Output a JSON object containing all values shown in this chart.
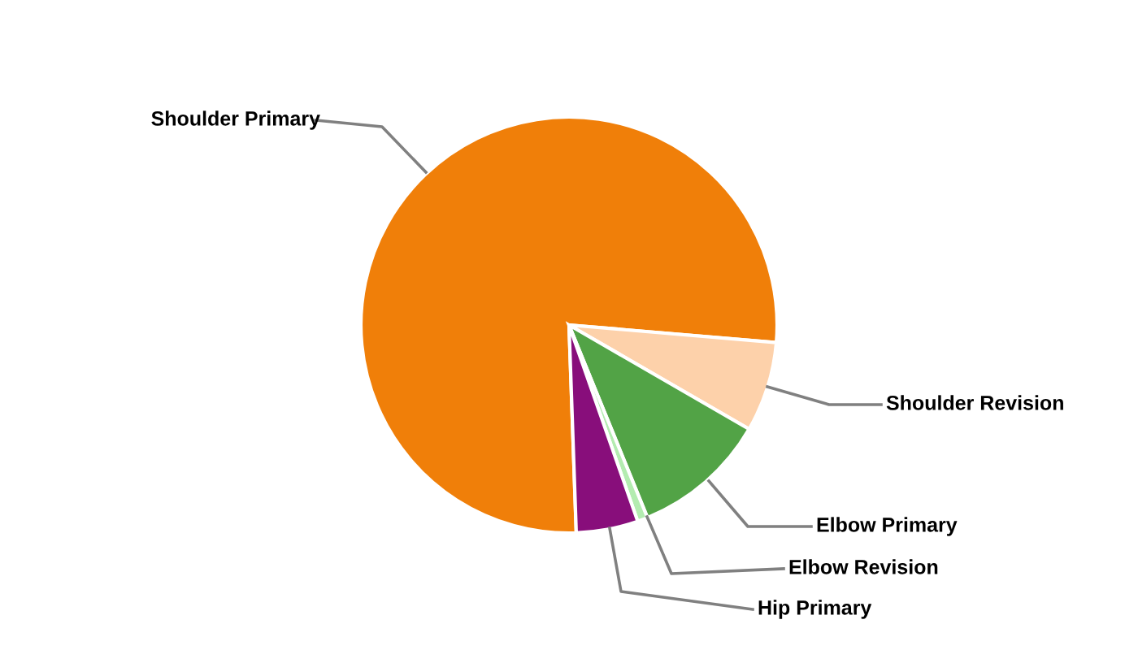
{
  "chart_data": {
    "type": "pie",
    "categories": [
      "Shoulder Primary",
      "Shoulder Revision",
      "Elbow Primary",
      "Elbow Revision",
      "Hip Primary"
    ],
    "values": [
      76.9,
      7.0,
      10.5,
      0.8,
      4.8
    ],
    "colors": [
      "#f07f09",
      "#fdd1aa",
      "#52a346",
      "#b3ecb0",
      "#880e7b"
    ],
    "legend": false
  }
}
